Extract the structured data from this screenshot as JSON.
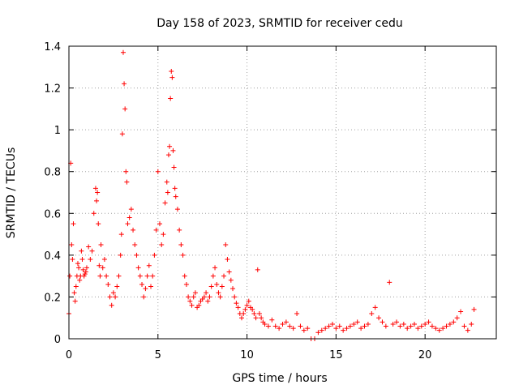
{
  "chart_data": {
    "type": "scatter",
    "title": "Day 158 of 2023, SRMTID for receiver cedu",
    "xlabel": "GPS time / hours",
    "ylabel": "SRMTID / TECUs",
    "xlim": [
      0,
      24
    ],
    "ylim": [
      0,
      1.4
    ],
    "x_ticks": [
      0,
      5,
      10,
      15,
      20
    ],
    "x_tick_labels": [
      "0",
      "5",
      "10",
      "15",
      "20"
    ],
    "y_ticks": [
      0,
      0.2,
      0.4,
      0.6,
      0.8,
      1,
      1.2,
      1.4
    ],
    "y_tick_labels": [
      "0",
      "0.2",
      "0.4",
      "0.6",
      "0.8",
      "1",
      "1.2",
      "1.4"
    ],
    "grid": true,
    "marker": "plus",
    "series": [
      {
        "name": "SRMTID",
        "color": "#ff0000",
        "x": [
          0.0,
          0.05,
          0.1,
          0.15,
          0.2,
          0.25,
          0.3,
          0.35,
          0.4,
          0.45,
          0.5,
          0.55,
          0.6,
          0.65,
          0.7,
          0.75,
          0.8,
          0.85,
          0.9,
          0.95,
          1.0,
          1.1,
          1.2,
          1.3,
          1.4,
          1.5,
          1.55,
          1.6,
          1.65,
          1.7,
          1.75,
          1.8,
          1.9,
          2.0,
          2.1,
          2.2,
          2.3,
          2.4,
          2.5,
          2.6,
          2.7,
          2.8,
          2.9,
          2.95,
          3.0,
          3.05,
          3.1,
          3.15,
          3.2,
          3.25,
          3.3,
          3.4,
          3.5,
          3.6,
          3.7,
          3.8,
          3.9,
          4.0,
          4.1,
          4.2,
          4.3,
          4.4,
          4.5,
          4.6,
          4.7,
          4.8,
          4.9,
          5.0,
          5.1,
          5.2,
          5.3,
          5.4,
          5.5,
          5.55,
          5.6,
          5.65,
          5.7,
          5.75,
          5.8,
          5.85,
          5.9,
          5.95,
          6.0,
          6.1,
          6.2,
          6.3,
          6.4,
          6.5,
          6.6,
          6.7,
          6.8,
          6.9,
          7.0,
          7.1,
          7.2,
          7.3,
          7.4,
          7.5,
          7.6,
          7.7,
          7.8,
          7.9,
          8.0,
          8.1,
          8.2,
          8.3,
          8.4,
          8.5,
          8.6,
          8.7,
          8.8,
          8.9,
          9.0,
          9.1,
          9.2,
          9.3,
          9.4,
          9.5,
          9.6,
          9.7,
          9.8,
          9.9,
          10.0,
          10.1,
          10.2,
          10.3,
          10.4,
          10.5,
          10.6,
          10.7,
          10.8,
          10.9,
          11.0,
          11.2,
          11.4,
          11.6,
          11.8,
          12.0,
          12.2,
          12.4,
          12.6,
          12.8,
          13.0,
          13.2,
          13.4,
          13.6,
          13.8,
          14.0,
          14.2,
          14.4,
          14.6,
          14.8,
          15.0,
          15.2,
          15.4,
          15.6,
          15.8,
          16.0,
          16.2,
          16.4,
          16.6,
          16.8,
          17.0,
          17.2,
          17.4,
          17.6,
          17.8,
          18.0,
          18.2,
          18.4,
          18.6,
          18.8,
          19.0,
          19.2,
          19.4,
          19.6,
          19.8,
          20.0,
          20.2,
          20.4,
          20.6,
          20.8,
          21.0,
          21.2,
          21.4,
          21.6,
          21.8,
          22.0,
          22.2,
          22.4,
          22.6,
          22.75
        ],
        "y": [
          0.12,
          0.3,
          0.84,
          0.45,
          0.38,
          0.55,
          0.22,
          0.18,
          0.25,
          0.3,
          0.36,
          0.34,
          0.28,
          0.3,
          0.42,
          0.38,
          0.33,
          0.3,
          0.31,
          0.32,
          0.34,
          0.44,
          0.38,
          0.42,
          0.6,
          0.72,
          0.66,
          0.7,
          0.55,
          0.35,
          0.3,
          0.45,
          0.34,
          0.38,
          0.3,
          0.26,
          0.2,
          0.16,
          0.22,
          0.2,
          0.25,
          0.3,
          0.4,
          0.5,
          0.98,
          1.37,
          1.22,
          1.1,
          0.8,
          0.75,
          0.55,
          0.58,
          0.62,
          0.52,
          0.45,
          0.4,
          0.34,
          0.3,
          0.26,
          0.2,
          0.24,
          0.3,
          0.35,
          0.25,
          0.3,
          0.4,
          0.52,
          0.8,
          0.55,
          0.45,
          0.5,
          0.65,
          0.75,
          0.7,
          0.88,
          0.92,
          1.15,
          1.28,
          1.25,
          0.9,
          0.82,
          0.72,
          0.68,
          0.62,
          0.52,
          0.45,
          0.4,
          0.3,
          0.26,
          0.2,
          0.18,
          0.16,
          0.2,
          0.22,
          0.15,
          0.16,
          0.18,
          0.19,
          0.2,
          0.22,
          0.18,
          0.2,
          0.25,
          0.3,
          0.34,
          0.26,
          0.22,
          0.2,
          0.25,
          0.3,
          0.45,
          0.38,
          0.32,
          0.28,
          0.24,
          0.2,
          0.17,
          0.15,
          0.12,
          0.1,
          0.12,
          0.14,
          0.16,
          0.18,
          0.15,
          0.14,
          0.12,
          0.1,
          0.33,
          0.12,
          0.1,
          0.08,
          0.07,
          0.06,
          0.09,
          0.06,
          0.05,
          0.07,
          0.08,
          0.06,
          0.05,
          0.12,
          0.06,
          0.04,
          0.05,
          0.0,
          0.0,
          0.03,
          0.04,
          0.05,
          0.06,
          0.07,
          0.05,
          0.06,
          0.04,
          0.05,
          0.06,
          0.07,
          0.08,
          0.05,
          0.06,
          0.07,
          0.12,
          0.15,
          0.1,
          0.08,
          0.06,
          0.27,
          0.07,
          0.08,
          0.06,
          0.07,
          0.05,
          0.06,
          0.07,
          0.05,
          0.06,
          0.07,
          0.08,
          0.06,
          0.05,
          0.04,
          0.05,
          0.06,
          0.07,
          0.08,
          0.1,
          0.13,
          0.06,
          0.04,
          0.07,
          0.14
        ]
      }
    ]
  }
}
